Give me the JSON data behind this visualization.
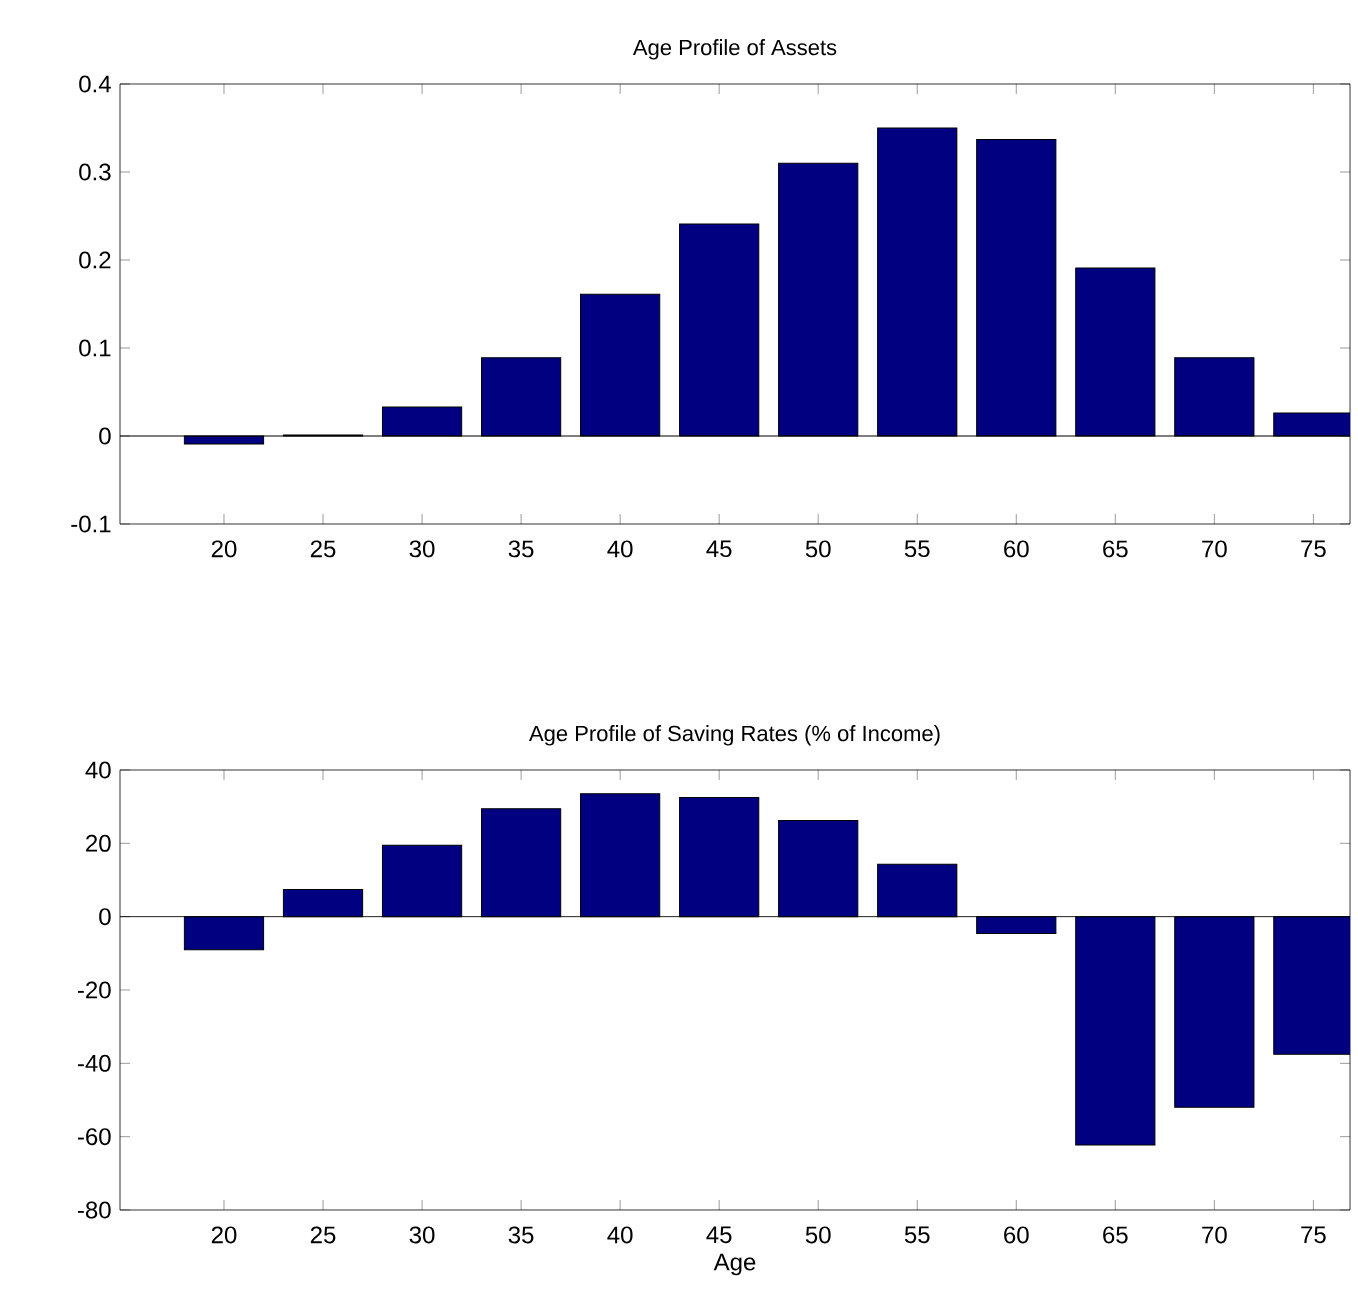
{
  "chart_data": [
    {
      "type": "bar",
      "title": "Age Profile of Assets",
      "categories": [
        "20",
        "25",
        "30",
        "35",
        "40",
        "45",
        "50",
        "55",
        "60",
        "65",
        "70",
        "75"
      ],
      "values": [
        -0.009,
        0.001,
        0.033,
        0.089,
        0.161,
        0.241,
        0.31,
        0.35,
        0.337,
        0.191,
        0.089,
        0.026
      ],
      "color": "#000080",
      "ylim": [
        -0.1,
        0.4
      ],
      "yticks": [
        -0.1,
        0,
        0.1,
        0.2,
        0.3,
        0.4
      ]
    },
    {
      "type": "bar",
      "title": "Age Profile of Saving Rates (% of Income)",
      "xlabel": "Age",
      "categories": [
        "20",
        "25",
        "30",
        "35",
        "40",
        "45",
        "50",
        "55",
        "60",
        "65",
        "70",
        "75"
      ],
      "values": [
        -9,
        7.4,
        19.5,
        29.4,
        33.5,
        32.5,
        26.2,
        14.3,
        -4.6,
        -62.3,
        -52,
        -37.5
      ],
      "color": "#000080",
      "ylim": [
        -80,
        40
      ],
      "yticks": [
        -80,
        -60,
        -40,
        -20,
        0,
        20,
        40
      ]
    }
  ]
}
